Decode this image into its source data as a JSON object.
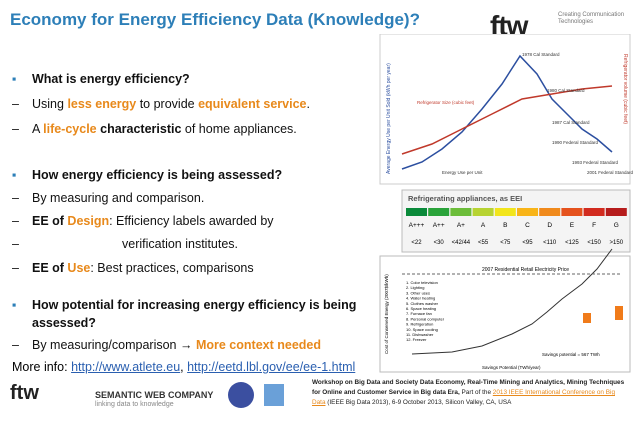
{
  "title": "Economy for Energy Efficiency Data (Knowledge)?",
  "logo": {
    "name": "ftw",
    "tagline": "Creating Communication Technologies"
  },
  "bullets": [
    {
      "marker": "▪",
      "parts": [
        {
          "t": "What is energy efficiency?",
          "s": "b"
        }
      ]
    },
    {
      "marker": "–",
      "parts": [
        {
          "t": "Using "
        },
        {
          "t": "less energy",
          "s": "o"
        },
        {
          "t": " to provide "
        },
        {
          "t": "equivalent service",
          "s": "o"
        },
        {
          "t": "."
        }
      ]
    },
    {
      "marker": "–",
      "parts": [
        {
          "t": "A "
        },
        {
          "t": "life-cycle",
          "s": "o"
        },
        {
          "t": " characteristic",
          "s": "b"
        },
        {
          "t": " of home appliances."
        }
      ]
    },
    {
      "marker": "▪",
      "parts": [
        {
          "t": "How energy efficiency is being assessed?",
          "s": "b"
        }
      ]
    },
    {
      "marker": "–",
      "parts": [
        {
          "t": "By measuring and comparison."
        }
      ]
    },
    {
      "marker": "–",
      "parts": [
        {
          "t": "EE of ",
          "s": "b"
        },
        {
          "t": "Design",
          "s": "o"
        },
        {
          "t": ": Efficiency labels awarded by"
        }
      ]
    },
    {
      "marker": "–",
      "parts": [
        {
          "t": "verification institutes.",
          "s": "i"
        }
      ]
    },
    {
      "marker": "–",
      "parts": [
        {
          "t": "EE of ",
          "s": "b"
        },
        {
          "t": "Use",
          "s": "o"
        },
        {
          "t": ": Best practices, comparisons"
        }
      ]
    },
    {
      "marker": "▪",
      "parts": [
        {
          "t": "How potential for increasing energy efficiency is being assessed?",
          "s": "b"
        }
      ]
    },
    {
      "marker": "–",
      "parts": [
        {
          "t": "By measuring/comparison "
        },
        {
          "t": "→ "
        },
        {
          "t": "More context needed",
          "s": "o"
        }
      ]
    }
  ],
  "more_info": [
    {
      "t": "More info: "
    },
    {
      "t": "http://www.atlete.eu",
      "s": "link"
    },
    {
      "t": ", "
    },
    {
      "t": "http://eetd.lbl.gov/ee/ee-1.html",
      "s": "link"
    }
  ],
  "footer": {
    "logos": [
      "ftw",
      "SEMANTIC WEB COMPANY",
      "linking data to knowledge"
    ],
    "text": [
      {
        "t": "Workshop on Big Data and Society Data Economy, Real-Time Mining and Analytics, Mining Techniques for Online and Customer Service in Big data Era, ",
        "s": "b"
      },
      {
        "t": "Part of the "
      },
      {
        "t": "2013 IEEE International Conference on Big Data",
        "s": "link2"
      },
      {
        "t": " (IEEE Big Data 2013), 6-9 October 2013, Silicon Valley, CA, USA"
      }
    ]
  },
  "fridge_chart": {
    "y_label": "Average Energy Use per Unit Sold (kWh per year)",
    "y2_label": "Refrigerator volume (cubic feet)",
    "notes": [
      "Refrigerator Size (cubic feet)",
      "Energy Use per Unit",
      "1978 Cal Standard",
      "1980 Cal Standard",
      "1987 Cal Standard",
      "1990 Federal Standard",
      "1993 Federal Standard",
      "2001 Federal Standard"
    ]
  },
  "eei_table": {
    "title": "Refrigerating appliances, as EEI",
    "classes": [
      "A+++",
      "A++",
      "A+",
      "A",
      "B",
      "C",
      "D",
      "E",
      "F",
      "G"
    ],
    "limits": [
      "<22",
      "<30",
      "<42/44",
      "<55",
      "<75",
      "<95",
      "<110",
      "<125",
      "<150",
      ">150"
    ]
  },
  "cost_chart": {
    "price_label": "2007 Residential Retail Electricity Price",
    "x_label": "Savings Potential (TWh/year)",
    "y_label": "Cost of Conserved Energy (2007$/kWh)",
    "legend": [
      "1. Color television",
      "2. Lighting",
      "3. Other uses",
      "4. Water heating",
      "5. Clothes washer",
      "6. Space heating",
      "7. Furnace fan",
      "8. Personal computer",
      "9. Refrigeration",
      "10. Space cooling",
      "11. Dishwasher",
      "12. Freezer"
    ],
    "note": "Savings potential = 567 TWh"
  }
}
